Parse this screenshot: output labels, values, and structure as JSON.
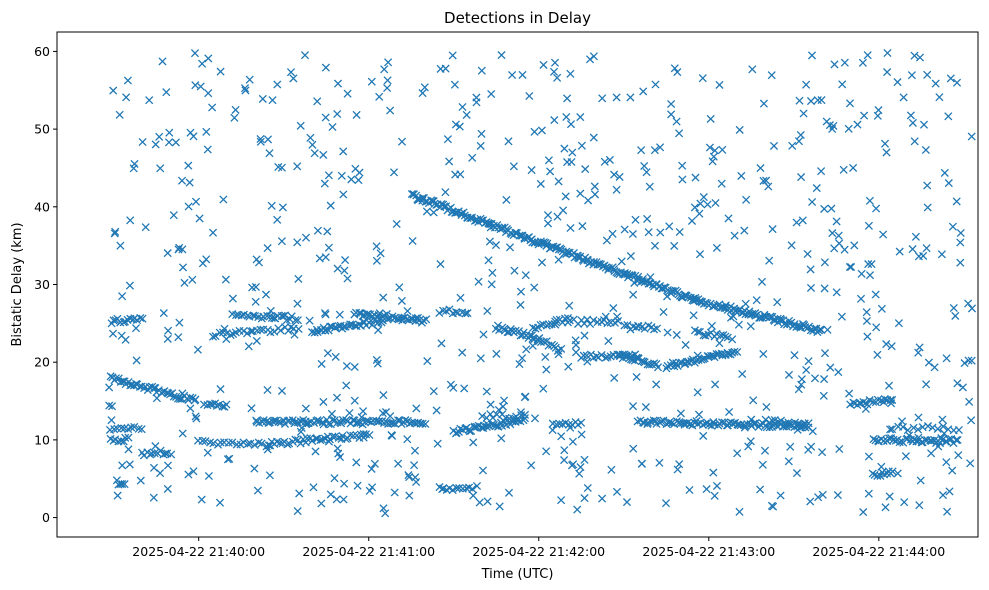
{
  "chart_data": {
    "type": "scatter",
    "title": "Detections in Delay",
    "xlabel": "Time (UTC)",
    "ylabel": "Bistatic Delay (km)",
    "marker": "x",
    "color": "#1f77b4",
    "grid": false,
    "x_unit": "time",
    "xlim": [
      "2025-04-22 21:39:10",
      "2025-04-22 21:44:35"
    ],
    "ylim": [
      -2.5,
      62.5
    ],
    "x_ticks": [
      "2025-04-22 21:40:00",
      "2025-04-22 21:41:00",
      "2025-04-22 21:42:00",
      "2025-04-22 21:43:00",
      "2025-04-22 21:44:00"
    ],
    "y_ticks": [
      0,
      10,
      20,
      30,
      40,
      50,
      60
    ],
    "tracks": [
      {
        "x_start": "2025-04-22 21:39:29",
        "x_end": "2025-04-22 21:39:59",
        "y_start": 18.0,
        "y_end": 15.0,
        "count": 45
      },
      {
        "x_start": "2025-04-22 21:40:02",
        "x_end": "2025-04-22 21:40:10",
        "y_start": 14.8,
        "y_end": 14.3,
        "count": 10
      },
      {
        "x_start": "2025-04-22 21:41:15",
        "x_end": "2025-04-22 21:42:55",
        "y_start": 41.5,
        "y_end": 28.0,
        "count": 190
      },
      {
        "x_start": "2025-04-22 21:42:55",
        "x_end": "2025-04-22 21:43:40",
        "y_start": 28.0,
        "y_end": 24.0,
        "count": 80
      },
      {
        "x_start": "2025-04-22 21:39:29",
        "x_end": "2025-04-22 21:39:40",
        "y_start": 25.3,
        "y_end": 25.6,
        "count": 14
      },
      {
        "x_start": "2025-04-22 21:40:12",
        "x_end": "2025-04-22 21:40:35",
        "y_start": 26.0,
        "y_end": 25.6,
        "count": 24
      },
      {
        "x_start": "2025-04-22 21:40:05",
        "x_end": "2025-04-22 21:40:35",
        "y_start": 23.5,
        "y_end": 24.4,
        "count": 26
      },
      {
        "x_start": "2025-04-22 21:40:40",
        "x_end": "2025-04-22 21:41:05",
        "y_start": 24.0,
        "y_end": 25.3,
        "count": 36
      },
      {
        "x_start": "2025-04-22 21:40:55",
        "x_end": "2025-04-22 21:41:20",
        "y_start": 26.2,
        "y_end": 25.3,
        "count": 36
      },
      {
        "x_start": "2025-04-22 21:41:25",
        "x_end": "2025-04-22 21:41:35",
        "y_start": 26.5,
        "y_end": 26.5,
        "count": 10
      },
      {
        "x_start": "2025-04-22 21:41:45",
        "x_end": "2025-04-22 21:42:00",
        "y_start": 24.5,
        "y_end": 23.0,
        "count": 24
      },
      {
        "x_start": "2025-04-22 21:42:00",
        "x_end": "2025-04-22 21:42:08",
        "y_start": 23.0,
        "y_end": 21.6,
        "count": 10
      },
      {
        "x_start": "2025-04-22 21:41:58",
        "x_end": "2025-04-22 21:42:10",
        "y_start": 24.5,
        "y_end": 25.5,
        "count": 14
      },
      {
        "x_start": "2025-04-22 21:42:10",
        "x_end": "2025-04-22 21:42:28",
        "y_start": 25.2,
        "y_end": 25.2,
        "count": 16
      },
      {
        "x_start": "2025-04-22 21:42:15",
        "x_end": "2025-04-22 21:42:35",
        "y_start": 20.8,
        "y_end": 20.8,
        "count": 20
      },
      {
        "x_start": "2025-04-22 21:42:30",
        "x_end": "2025-04-22 21:42:42",
        "y_start": 24.5,
        "y_end": 24.5,
        "count": 12
      },
      {
        "x_start": "2025-04-22 21:42:28",
        "x_end": "2025-04-22 21:42:42",
        "y_start": 21.0,
        "y_end": 19.5,
        "count": 20
      },
      {
        "x_start": "2025-04-22 21:42:45",
        "x_end": "2025-04-22 21:43:10",
        "y_start": 19.5,
        "y_end": 21.3,
        "count": 36
      },
      {
        "x_start": "2025-04-22 21:42:55",
        "x_end": "2025-04-22 21:43:08",
        "y_start": 24.0,
        "y_end": 23.0,
        "count": 14
      },
      {
        "x_start": "2025-04-22 21:40:00",
        "x_end": "2025-04-22 21:40:25",
        "y_start": 9.8,
        "y_end": 9.3,
        "count": 20
      },
      {
        "x_start": "2025-04-22 21:40:25",
        "x_end": "2025-04-22 21:41:00",
        "y_start": 9.5,
        "y_end": 10.6,
        "count": 40
      },
      {
        "x_start": "2025-04-22 21:40:20",
        "x_end": "2025-04-22 21:41:20",
        "y_start": 12.3,
        "y_end": 12.3,
        "count": 80
      },
      {
        "x_start": "2025-04-22 21:41:30",
        "x_end": "2025-04-22 21:41:55",
        "y_start": 11.0,
        "y_end": 12.6,
        "count": 40
      },
      {
        "x_start": "2025-04-22 21:41:40",
        "x_end": "2025-04-22 21:41:55",
        "y_start": 13.0,
        "y_end": 13.0,
        "count": 12
      },
      {
        "x_start": "2025-04-22 21:42:05",
        "x_end": "2025-04-22 21:42:15",
        "y_start": 12.2,
        "y_end": 12.2,
        "count": 10
      },
      {
        "x_start": "2025-04-22 21:42:35",
        "x_end": "2025-04-22 21:43:35",
        "y_start": 12.3,
        "y_end": 11.8,
        "count": 80
      },
      {
        "x_start": "2025-04-22 21:43:20",
        "x_end": "2025-04-22 21:43:35",
        "y_start": 12.5,
        "y_end": 12.0,
        "count": 14
      },
      {
        "x_start": "2025-04-22 21:43:50",
        "x_end": "2025-04-22 21:44:05",
        "y_start": 14.5,
        "y_end": 15.3,
        "count": 18
      },
      {
        "x_start": "2025-04-22 21:43:58",
        "x_end": "2025-04-22 21:44:28",
        "y_start": 10.0,
        "y_end": 9.8,
        "count": 40
      },
      {
        "x_start": "2025-04-22 21:44:05",
        "x_end": "2025-04-22 21:44:28",
        "y_start": 11.5,
        "y_end": 11.5,
        "count": 14
      },
      {
        "x_start": "2025-04-22 21:39:29",
        "x_end": "2025-04-22 21:39:35",
        "y_start": 10.0,
        "y_end": 10.0,
        "count": 8
      },
      {
        "x_start": "2025-04-22 21:39:29",
        "x_end": "2025-04-22 21:39:40",
        "y_start": 11.5,
        "y_end": 11.5,
        "count": 10
      },
      {
        "x_start": "2025-04-22 21:39:40",
        "x_end": "2025-04-22 21:39:50",
        "y_start": 8.2,
        "y_end": 8.4,
        "count": 12
      },
      {
        "x_start": "2025-04-22 21:41:25",
        "x_end": "2025-04-22 21:41:38",
        "y_start": 3.8,
        "y_end": 3.8,
        "count": 12
      },
      {
        "x_start": "2025-04-22 21:43:58",
        "x_end": "2025-04-22 21:44:05",
        "y_start": 5.5,
        "y_end": 6.0,
        "count": 10
      },
      {
        "x_start": "2025-04-22 21:39:31",
        "x_end": "2025-04-22 21:39:34",
        "y_start": 4.5,
        "y_end": 4.5,
        "count": 5
      },
      {
        "x_start": "2025-04-22 21:44:30",
        "x_end": "2025-04-22 21:44:33",
        "y_start": 20.0,
        "y_end": 20.0,
        "count": 3
      }
    ],
    "scatter_noise": {
      "x_range": [
        "2025-04-22 21:39:28",
        "2025-04-22 21:44:33"
      ],
      "y_range": [
        0.5,
        60
      ],
      "count": 750
    }
  }
}
